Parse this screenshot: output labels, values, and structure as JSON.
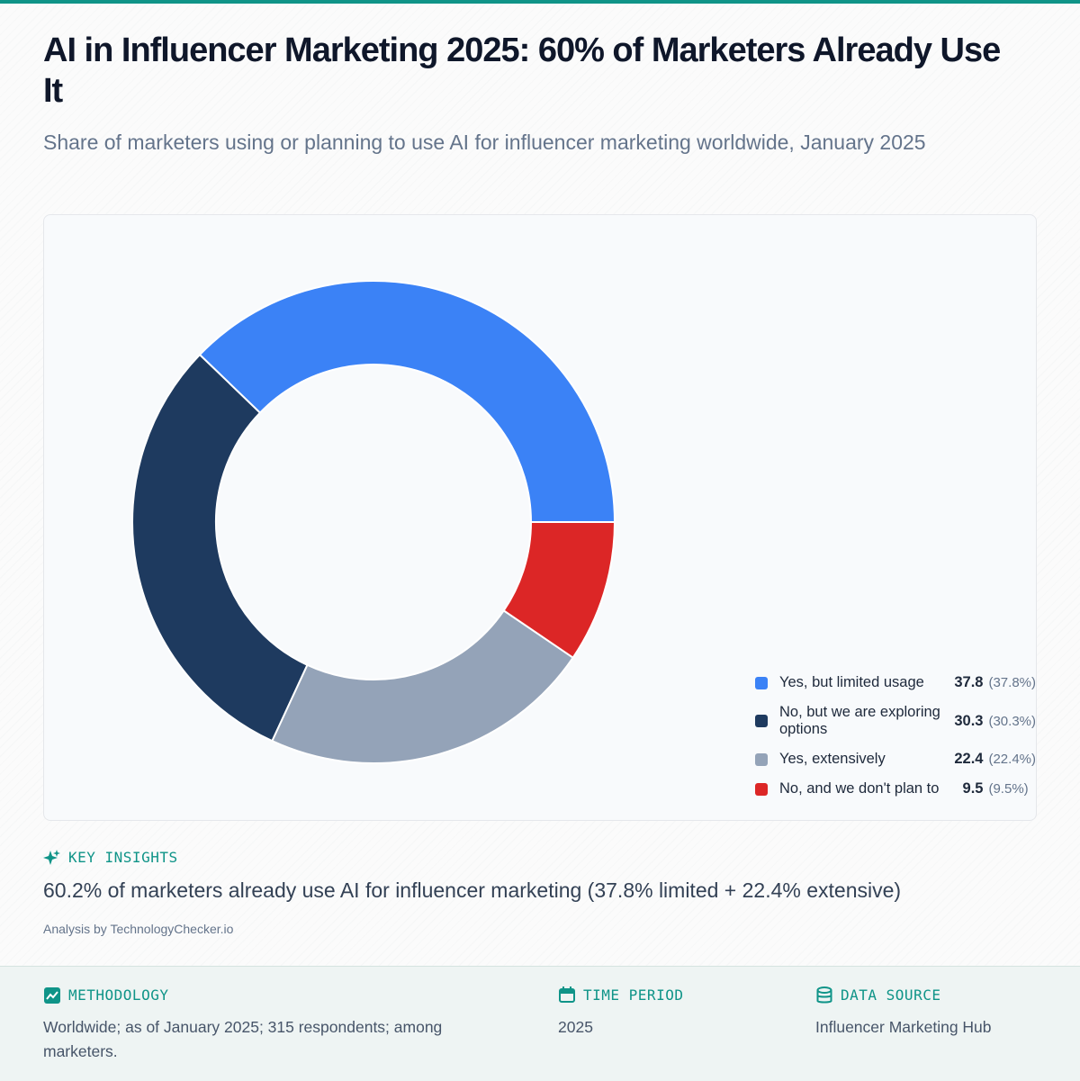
{
  "header": {
    "title": "AI in Influencer Marketing 2025: 60% of Marketers Already Use It",
    "subtitle": "Share of marketers using or planning to use AI for influencer marketing worldwide, January 2025"
  },
  "chart_data": {
    "type": "pie",
    "donut": true,
    "categories": [
      "Yes, but limited usage",
      "No, but we are exploring options",
      "Yes, extensively",
      "No, and we don't plan to"
    ],
    "values": [
      37.8,
      30.3,
      22.4,
      9.5
    ],
    "value_labels": [
      "(37.8%)",
      "(30.3%)",
      "(22.4%)",
      "(9.5%)"
    ],
    "colors": [
      "#3b82f6",
      "#1e3a5f",
      "#94a3b8",
      "#dc2626"
    ],
    "legend": "right"
  },
  "insights": {
    "label": "KEY INSIGHTS",
    "text": "60.2% of marketers already use AI for influencer marketing (37.8% limited + 22.4% extensive)",
    "credit": "Analysis by TechnologyChecker.io"
  },
  "footer": {
    "methodology": {
      "label": "METHODOLOGY",
      "text": "Worldwide; as of January 2025; 315 respondents; among marketers."
    },
    "time_period": {
      "label": "TIME PERIOD",
      "text": "2025"
    },
    "data_source": {
      "label": "DATA SOURCE",
      "text": "Influencer Marketing Hub"
    }
  }
}
